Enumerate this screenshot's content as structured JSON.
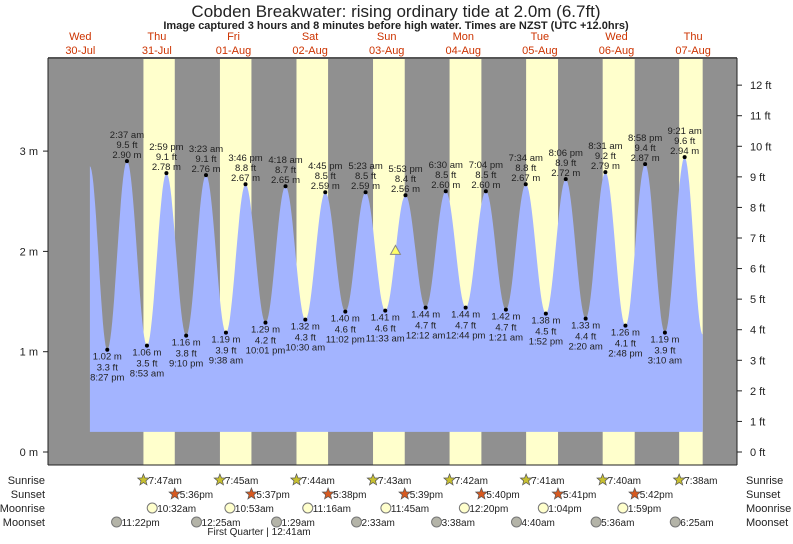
{
  "chart_data": {
    "type": "area",
    "title": "Cobden Breakwater: rising  ordinary tide at 2.0m (6.7ft)",
    "subtitle": "Image captured 3 hours and 8 minutes before high water. Times are NZST (UTC +12.0hrs)",
    "y_left_ticks": [
      "0 m",
      "1 m",
      "2 m",
      "3 m"
    ],
    "y_right_ticks": [
      "0 ft",
      "1 ft",
      "2 ft",
      "3 ft",
      "4 ft",
      "5 ft",
      "6 ft",
      "7 ft",
      "8 ft",
      "9 ft",
      "10 ft",
      "11 ft",
      "12 ft"
    ],
    "ylim_m": [
      0,
      3.9
    ],
    "days": [
      {
        "dow": "Wed",
        "date": "30-Jul"
      },
      {
        "dow": "Thu",
        "date": "31-Jul"
      },
      {
        "dow": "Fri",
        "date": "01-Aug"
      },
      {
        "dow": "Sat",
        "date": "02-Aug"
      },
      {
        "dow": "Sun",
        "date": "03-Aug"
      },
      {
        "dow": "Mon",
        "date": "04-Aug"
      },
      {
        "dow": "Tue",
        "date": "05-Aug"
      },
      {
        "dow": "Wed",
        "date": "06-Aug"
      },
      {
        "dow": "Thu",
        "date": "07-Aug"
      }
    ],
    "curve_start": {
      "date": "30-Jul",
      "time": "3:00 pm",
      "m": 2.85
    },
    "curve_end": {
      "date": "07-Aug",
      "time": "3:00 pm",
      "m": 1.17
    },
    "extremes": [
      {
        "type": "low",
        "date": "30-Jul",
        "time": "8:27 pm",
        "ft": "3.3 ft",
        "m": "1.02 m"
      },
      {
        "type": "high",
        "date": "31-Jul",
        "time": "2:37 am",
        "ft": "9.5 ft",
        "m": "2.90 m"
      },
      {
        "type": "low",
        "date": "31-Jul",
        "time": "8:53 am",
        "ft": "3.5 ft",
        "m": "1.06 m"
      },
      {
        "type": "high",
        "date": "31-Jul",
        "time": "2:59 pm",
        "ft": "9.1 ft",
        "m": "2.78 m"
      },
      {
        "type": "low",
        "date": "31-Jul",
        "time": "9:10 pm",
        "ft": "3.8 ft",
        "m": "1.16 m"
      },
      {
        "type": "high",
        "date": "01-Aug",
        "time": "3:23 am",
        "ft": "9.1 ft",
        "m": "2.76 m"
      },
      {
        "type": "low",
        "date": "01-Aug",
        "time": "9:38 am",
        "ft": "3.9 ft",
        "m": "1.19 m"
      },
      {
        "type": "high",
        "date": "01-Aug",
        "time": "3:46 pm",
        "ft": "8.8 ft",
        "m": "2.67 m"
      },
      {
        "type": "low",
        "date": "01-Aug",
        "time": "10:01 pm",
        "ft": "4.2 ft",
        "m": "1.29 m"
      },
      {
        "type": "high",
        "date": "02-Aug",
        "time": "4:18 am",
        "ft": "8.7 ft",
        "m": "2.65 m"
      },
      {
        "type": "low",
        "date": "02-Aug",
        "time": "10:30 am",
        "ft": "4.3 ft",
        "m": "1.32 m"
      },
      {
        "type": "high",
        "date": "02-Aug",
        "time": "4:45 pm",
        "ft": "8.5 ft",
        "m": "2.59 m"
      },
      {
        "type": "low",
        "date": "02-Aug",
        "time": "11:02 pm",
        "ft": "4.6 ft",
        "m": "1.40 m"
      },
      {
        "type": "high",
        "date": "03-Aug",
        "time": "5:23 am",
        "ft": "8.5 ft",
        "m": "2.59 m"
      },
      {
        "type": "low",
        "date": "03-Aug",
        "time": "11:33 am",
        "ft": "4.6 ft",
        "m": "1.41 m"
      },
      {
        "type": "high",
        "date": "03-Aug",
        "time": "5:53 pm",
        "ft": "8.4 ft",
        "m": "2.56 m"
      },
      {
        "type": "low",
        "date": "04-Aug",
        "time": "12:12 am",
        "ft": "4.7 ft",
        "m": "1.44 m"
      },
      {
        "type": "high",
        "date": "04-Aug",
        "time": "6:30 am",
        "ft": "8.5 ft",
        "m": "2.60 m"
      },
      {
        "type": "low",
        "date": "04-Aug",
        "time": "12:44 pm",
        "ft": "4.7 ft",
        "m": "1.44 m"
      },
      {
        "type": "high",
        "date": "04-Aug",
        "time": "7:04 pm",
        "ft": "8.5 ft",
        "m": "2.60 m"
      },
      {
        "type": "low",
        "date": "05-Aug",
        "time": "1:21 am",
        "ft": "4.7 ft",
        "m": "1.42 m"
      },
      {
        "type": "high",
        "date": "05-Aug",
        "time": "7:34 am",
        "ft": "8.8 ft",
        "m": "2.67 m"
      },
      {
        "type": "low",
        "date": "05-Aug",
        "time": "1:52 pm",
        "ft": "4.5 ft",
        "m": "1.38 m"
      },
      {
        "type": "high",
        "date": "05-Aug",
        "time": "8:06 pm",
        "ft": "8.9 ft",
        "m": "2.72 m"
      },
      {
        "type": "low",
        "date": "06-Aug",
        "time": "2:20 am",
        "ft": "4.4 ft",
        "m": "1.33 m"
      },
      {
        "type": "high",
        "date": "06-Aug",
        "time": "8:31 am",
        "ft": "9.2 ft",
        "m": "2.79 m"
      },
      {
        "type": "low",
        "date": "06-Aug",
        "time": "2:48 pm",
        "ft": "4.1 ft",
        "m": "1.26 m"
      },
      {
        "type": "high",
        "date": "06-Aug",
        "time": "8:58 pm",
        "ft": "9.4 ft",
        "m": "2.87 m"
      },
      {
        "type": "low",
        "date": "07-Aug",
        "time": "3:10 am",
        "ft": "3.9 ft",
        "m": "1.19 m"
      },
      {
        "type": "high",
        "date": "07-Aug",
        "time": "9:21 am",
        "ft": "9.6 ft",
        "m": "2.94 m"
      }
    ],
    "current": {
      "date": "03-Aug",
      "time": "2:45 pm",
      "m": 2.0
    },
    "colors": {
      "night": "#909090",
      "day": "#ffffcc",
      "water": "#a3b4ff",
      "day_label": "#cc3300",
      "sunrise": "#c8c030",
      "sunset": "#d85a20",
      "moonrise": "#ffffcc",
      "moonset": "#b4b4a8",
      "current": "#ffff66"
    }
  },
  "rows": {
    "sunrise": {
      "label": "Sunrise",
      "events": [
        {
          "date": "31-Jul",
          "time": "7:47am"
        },
        {
          "date": "01-Aug",
          "time": "7:45am"
        },
        {
          "date": "02-Aug",
          "time": "7:44am"
        },
        {
          "date": "03-Aug",
          "time": "7:43am"
        },
        {
          "date": "04-Aug",
          "time": "7:42am"
        },
        {
          "date": "05-Aug",
          "time": "7:41am"
        },
        {
          "date": "06-Aug",
          "time": "7:40am"
        },
        {
          "date": "07-Aug",
          "time": "7:38am"
        }
      ]
    },
    "sunset": {
      "label": "Sunset",
      "events": [
        {
          "date": "31-Jul",
          "time": "5:36pm"
        },
        {
          "date": "01-Aug",
          "time": "5:37pm"
        },
        {
          "date": "02-Aug",
          "time": "5:38pm"
        },
        {
          "date": "03-Aug",
          "time": "5:39pm"
        },
        {
          "date": "04-Aug",
          "time": "5:40pm"
        },
        {
          "date": "05-Aug",
          "time": "5:41pm"
        },
        {
          "date": "06-Aug",
          "time": "5:42pm"
        }
      ]
    },
    "moonrise": {
      "label": "Moonrise",
      "events": [
        {
          "date": "31-Jul",
          "time": "10:32am"
        },
        {
          "date": "01-Aug",
          "time": "10:53am"
        },
        {
          "date": "02-Aug",
          "time": "11:16am"
        },
        {
          "date": "03-Aug",
          "time": "11:45am"
        },
        {
          "date": "04-Aug",
          "time": "12:20pm"
        },
        {
          "date": "05-Aug",
          "time": "1:04pm"
        },
        {
          "date": "06-Aug",
          "time": "1:59pm"
        }
      ]
    },
    "moonset": {
      "label": "Moonset",
      "events": [
        {
          "date": "30-Jul",
          "time": "11:22pm"
        },
        {
          "date": "01-Aug",
          "time": "12:25am"
        },
        {
          "date": "02-Aug",
          "time": "1:29am"
        },
        {
          "date": "03-Aug",
          "time": "2:33am"
        },
        {
          "date": "04-Aug",
          "time": "3:38am"
        },
        {
          "date": "05-Aug",
          "time": "4:40am"
        },
        {
          "date": "06-Aug",
          "time": "5:36am"
        },
        {
          "date": "07-Aug",
          "time": "6:25am"
        }
      ]
    }
  },
  "moon_phase": "First Quarter | 12:41am"
}
